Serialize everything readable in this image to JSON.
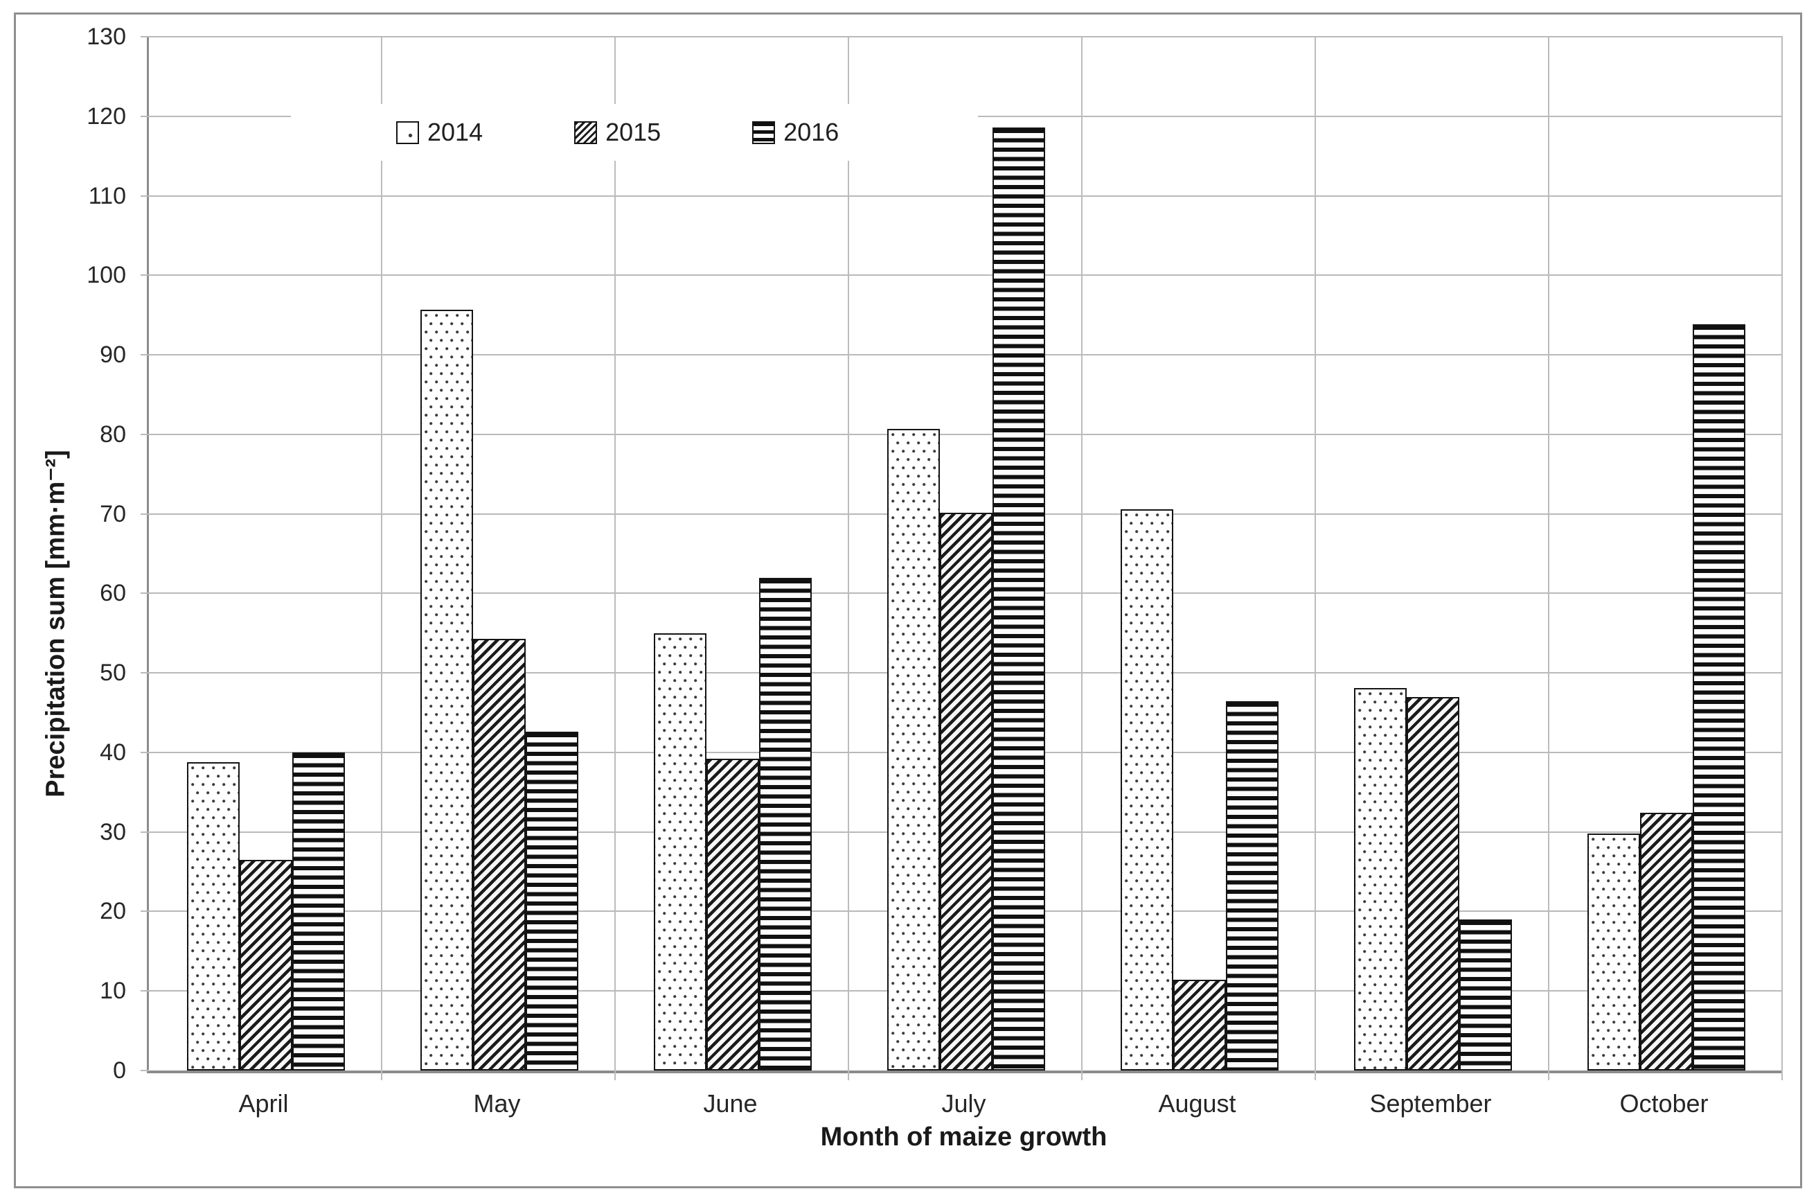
{
  "figure": {
    "kind": "grouped bar chart",
    "background": "#ffffff",
    "border_color": "#8f8f8f"
  },
  "axes": {
    "y_title": "Precipitation sum  [mm·m⁻²]",
    "x_title": "Month of maize growth"
  },
  "colors": {
    "bar_border": "#141414",
    "gridline": "#b9b9b9",
    "axis_line": "#8c8c8c",
    "text": "#262626"
  },
  "chart_data": {
    "type": "bar",
    "title": "",
    "categories": [
      "April",
      "May",
      "June",
      "July",
      "August",
      "September",
      "October"
    ],
    "series": [
      {
        "name": "2014",
        "pattern": "dots",
        "values": [
          38.6,
          95.5,
          54.8,
          80.5,
          70.4,
          47.9,
          29.6
        ]
      },
      {
        "name": "2015",
        "pattern": "diagonal-hatch",
        "values": [
          26.3,
          54.1,
          39.0,
          70.0,
          11.2,
          46.8,
          32.2
        ]
      },
      {
        "name": "2016",
        "pattern": "horizontal-lines",
        "values": [
          39.8,
          42.4,
          61.8,
          118.4,
          46.3,
          18.8,
          93.7
        ]
      }
    ],
    "xlabel": "Month of maize growth",
    "ylabel": "Precipitation sum  [mm·m⁻²]",
    "ylim": [
      0,
      130
    ],
    "ytick_step": 10,
    "yticks": [
      0,
      10,
      20,
      30,
      40,
      50,
      60,
      70,
      80,
      90,
      100,
      110,
      120,
      130
    ],
    "grid": true,
    "legend_position": "inside-top-left",
    "legend_labels": [
      "2014",
      "2015",
      "2016"
    ]
  }
}
